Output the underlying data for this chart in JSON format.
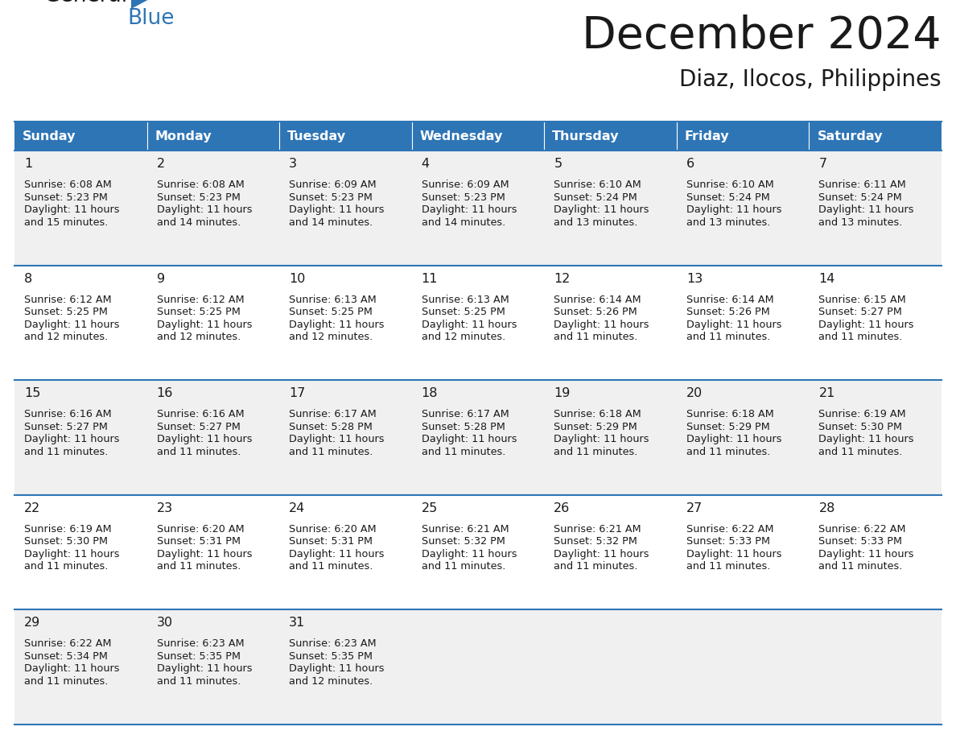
{
  "title": "December 2024",
  "subtitle": "Diaz, Ilocos, Philippines",
  "header_color": "#2E75B6",
  "header_text_color": "#FFFFFF",
  "day_names": [
    "Sunday",
    "Monday",
    "Tuesday",
    "Wednesday",
    "Thursday",
    "Friday",
    "Saturday"
  ],
  "bg_color": "#FFFFFF",
  "row_bg": [
    "#F0F0F0",
    "#FFFFFF",
    "#F0F0F0",
    "#FFFFFF",
    "#F0F0F0"
  ],
  "line_color": "#2E75B6",
  "days": [
    {
      "day": 1,
      "col": 0,
      "row": 0,
      "sunrise": "6:08 AM",
      "sunset": "5:23 PM",
      "daylight": "11 hours",
      "daylight2": "and 15 minutes."
    },
    {
      "day": 2,
      "col": 1,
      "row": 0,
      "sunrise": "6:08 AM",
      "sunset": "5:23 PM",
      "daylight": "11 hours",
      "daylight2": "and 14 minutes."
    },
    {
      "day": 3,
      "col": 2,
      "row": 0,
      "sunrise": "6:09 AM",
      "sunset": "5:23 PM",
      "daylight": "11 hours",
      "daylight2": "and 14 minutes."
    },
    {
      "day": 4,
      "col": 3,
      "row": 0,
      "sunrise": "6:09 AM",
      "sunset": "5:23 PM",
      "daylight": "11 hours",
      "daylight2": "and 14 minutes."
    },
    {
      "day": 5,
      "col": 4,
      "row": 0,
      "sunrise": "6:10 AM",
      "sunset": "5:24 PM",
      "daylight": "11 hours",
      "daylight2": "and 13 minutes."
    },
    {
      "day": 6,
      "col": 5,
      "row": 0,
      "sunrise": "6:10 AM",
      "sunset": "5:24 PM",
      "daylight": "11 hours",
      "daylight2": "and 13 minutes."
    },
    {
      "day": 7,
      "col": 6,
      "row": 0,
      "sunrise": "6:11 AM",
      "sunset": "5:24 PM",
      "daylight": "11 hours",
      "daylight2": "and 13 minutes."
    },
    {
      "day": 8,
      "col": 0,
      "row": 1,
      "sunrise": "6:12 AM",
      "sunset": "5:25 PM",
      "daylight": "11 hours",
      "daylight2": "and 12 minutes."
    },
    {
      "day": 9,
      "col": 1,
      "row": 1,
      "sunrise": "6:12 AM",
      "sunset": "5:25 PM",
      "daylight": "11 hours",
      "daylight2": "and 12 minutes."
    },
    {
      "day": 10,
      "col": 2,
      "row": 1,
      "sunrise": "6:13 AM",
      "sunset": "5:25 PM",
      "daylight": "11 hours",
      "daylight2": "and 12 minutes."
    },
    {
      "day": 11,
      "col": 3,
      "row": 1,
      "sunrise": "6:13 AM",
      "sunset": "5:25 PM",
      "daylight": "11 hours",
      "daylight2": "and 12 minutes."
    },
    {
      "day": 12,
      "col": 4,
      "row": 1,
      "sunrise": "6:14 AM",
      "sunset": "5:26 PM",
      "daylight": "11 hours",
      "daylight2": "and 11 minutes."
    },
    {
      "day": 13,
      "col": 5,
      "row": 1,
      "sunrise": "6:14 AM",
      "sunset": "5:26 PM",
      "daylight": "11 hours",
      "daylight2": "and 11 minutes."
    },
    {
      "day": 14,
      "col": 6,
      "row": 1,
      "sunrise": "6:15 AM",
      "sunset": "5:27 PM",
      "daylight": "11 hours",
      "daylight2": "and 11 minutes."
    },
    {
      "day": 15,
      "col": 0,
      "row": 2,
      "sunrise": "6:16 AM",
      "sunset": "5:27 PM",
      "daylight": "11 hours",
      "daylight2": "and 11 minutes."
    },
    {
      "day": 16,
      "col": 1,
      "row": 2,
      "sunrise": "6:16 AM",
      "sunset": "5:27 PM",
      "daylight": "11 hours",
      "daylight2": "and 11 minutes."
    },
    {
      "day": 17,
      "col": 2,
      "row": 2,
      "sunrise": "6:17 AM",
      "sunset": "5:28 PM",
      "daylight": "11 hours",
      "daylight2": "and 11 minutes."
    },
    {
      "day": 18,
      "col": 3,
      "row": 2,
      "sunrise": "6:17 AM",
      "sunset": "5:28 PM",
      "daylight": "11 hours",
      "daylight2": "and 11 minutes."
    },
    {
      "day": 19,
      "col": 4,
      "row": 2,
      "sunrise": "6:18 AM",
      "sunset": "5:29 PM",
      "daylight": "11 hours",
      "daylight2": "and 11 minutes."
    },
    {
      "day": 20,
      "col": 5,
      "row": 2,
      "sunrise": "6:18 AM",
      "sunset": "5:29 PM",
      "daylight": "11 hours",
      "daylight2": "and 11 minutes."
    },
    {
      "day": 21,
      "col": 6,
      "row": 2,
      "sunrise": "6:19 AM",
      "sunset": "5:30 PM",
      "daylight": "11 hours",
      "daylight2": "and 11 minutes."
    },
    {
      "day": 22,
      "col": 0,
      "row": 3,
      "sunrise": "6:19 AM",
      "sunset": "5:30 PM",
      "daylight": "11 hours",
      "daylight2": "and 11 minutes."
    },
    {
      "day": 23,
      "col": 1,
      "row": 3,
      "sunrise": "6:20 AM",
      "sunset": "5:31 PM",
      "daylight": "11 hours",
      "daylight2": "and 11 minutes."
    },
    {
      "day": 24,
      "col": 2,
      "row": 3,
      "sunrise": "6:20 AM",
      "sunset": "5:31 PM",
      "daylight": "11 hours",
      "daylight2": "and 11 minutes."
    },
    {
      "day": 25,
      "col": 3,
      "row": 3,
      "sunrise": "6:21 AM",
      "sunset": "5:32 PM",
      "daylight": "11 hours",
      "daylight2": "and 11 minutes."
    },
    {
      "day": 26,
      "col": 4,
      "row": 3,
      "sunrise": "6:21 AM",
      "sunset": "5:32 PM",
      "daylight": "11 hours",
      "daylight2": "and 11 minutes."
    },
    {
      "day": 27,
      "col": 5,
      "row": 3,
      "sunrise": "6:22 AM",
      "sunset": "5:33 PM",
      "daylight": "11 hours",
      "daylight2": "and 11 minutes."
    },
    {
      "day": 28,
      "col": 6,
      "row": 3,
      "sunrise": "6:22 AM",
      "sunset": "5:33 PM",
      "daylight": "11 hours",
      "daylight2": "and 11 minutes."
    },
    {
      "day": 29,
      "col": 0,
      "row": 4,
      "sunrise": "6:22 AM",
      "sunset": "5:34 PM",
      "daylight": "11 hours",
      "daylight2": "and 11 minutes."
    },
    {
      "day": 30,
      "col": 1,
      "row": 4,
      "sunrise": "6:23 AM",
      "sunset": "5:35 PM",
      "daylight": "11 hours",
      "daylight2": "and 11 minutes."
    },
    {
      "day": 31,
      "col": 2,
      "row": 4,
      "sunrise": "6:23 AM",
      "sunset": "5:35 PM",
      "daylight": "11 hours",
      "daylight2": "and 12 minutes."
    }
  ]
}
